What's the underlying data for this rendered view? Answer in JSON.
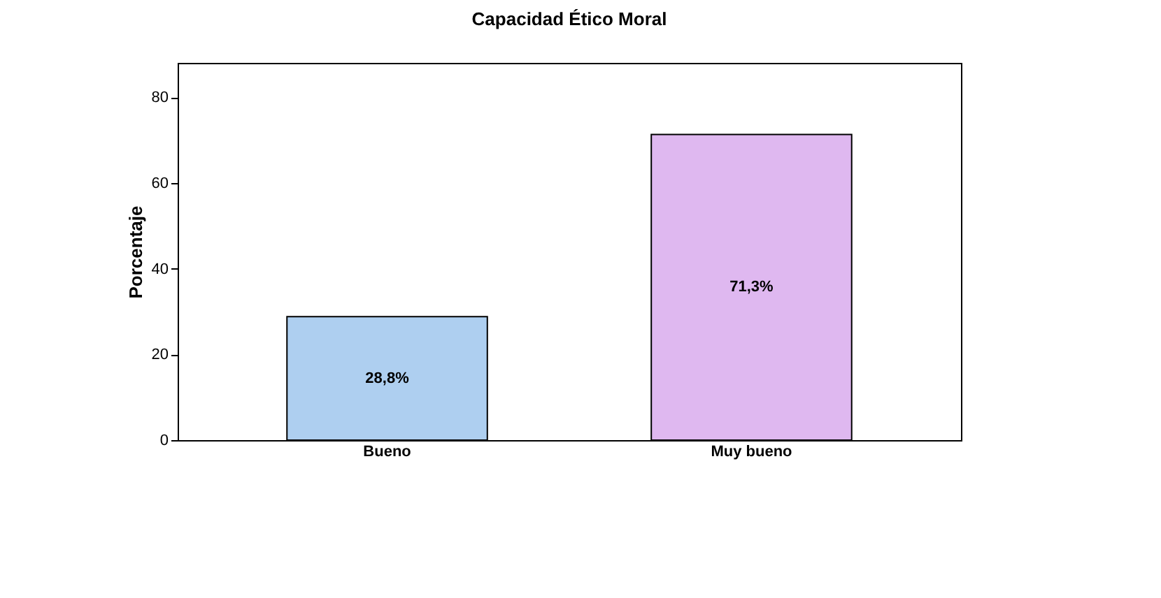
{
  "chart_data": {
    "type": "bar",
    "title": "Capacidad Ético Moral",
    "ylabel": "Porcentaje",
    "categories": [
      "Bueno",
      "Muy bueno"
    ],
    "values": [
      28.8,
      71.3
    ],
    "colors": [
      "#aecff0",
      "#dfb8f0"
    ],
    "value_labels": [
      "28,8%",
      "71,3%"
    ],
    "ylim": [
      0,
      88
    ],
    "yticks": [
      0,
      20,
      40,
      60,
      80
    ],
    "grid": false,
    "legend": false
  }
}
